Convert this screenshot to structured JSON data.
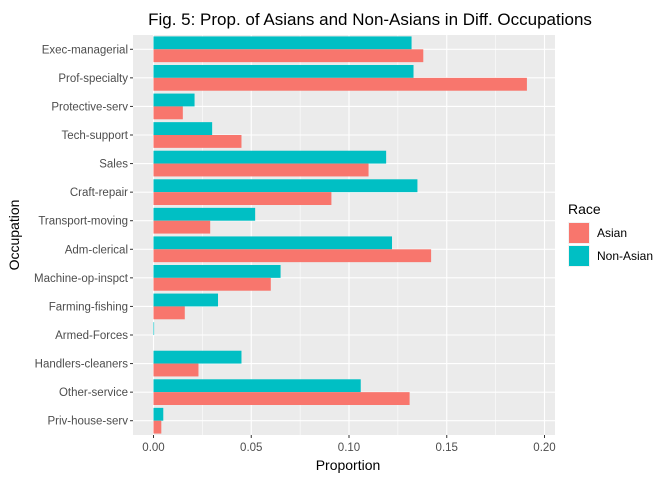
{
  "chart_data": {
    "type": "bar",
    "orientation": "horizontal",
    "title": "Fig. 5: Prop. of Asians and Non-Asians in Diff. Occupations",
    "xlabel": "Proportion",
    "ylabel": "Occupation",
    "xlim": [
      0,
      0.2
    ],
    "xticks": [
      "0.00",
      "0.05",
      "0.10",
      "0.15",
      "0.20"
    ],
    "grid": true,
    "legend": {
      "title": "Race",
      "placement": "right"
    },
    "categories": [
      "Exec-managerial",
      "Prof-specialty",
      "Protective-serv",
      "Tech-support",
      "Sales",
      "Craft-repair",
      "Transport-moving",
      "Adm-clerical",
      "Machine-op-inspct",
      "Farming-fishing",
      "Armed-Forces",
      "Handlers-cleaners",
      "Other-service",
      "Priv-house-serv"
    ],
    "series": [
      {
        "name": "Asian",
        "color": "#F8766D",
        "values": [
          0.138,
          0.191,
          0.015,
          0.045,
          0.11,
          0.091,
          0.029,
          0.142,
          0.06,
          0.016,
          0.0,
          0.023,
          0.131,
          0.004
        ]
      },
      {
        "name": "Non-Asian",
        "color": "#00BFC4",
        "values": [
          0.132,
          0.133,
          0.021,
          0.03,
          0.119,
          0.135,
          0.052,
          0.122,
          0.065,
          0.033,
          0.0003,
          0.045,
          0.106,
          0.005
        ]
      }
    ]
  }
}
